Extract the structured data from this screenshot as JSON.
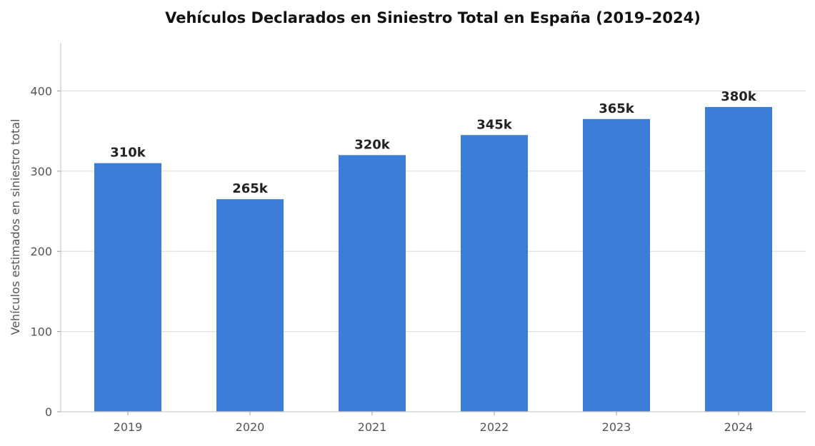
{
  "chart_data": {
    "type": "bar",
    "title": "Vehículos Declarados en Siniestro Total en España (2019–2024)",
    "xlabel": "",
    "ylabel": "Vehículos estimados en siniestro total",
    "categories": [
      "2019",
      "2020",
      "2021",
      "2022",
      "2023",
      "2024"
    ],
    "values": [
      310,
      265,
      320,
      345,
      365,
      380
    ],
    "data_labels": [
      "310k",
      "265k",
      "320k",
      "345k",
      "365k",
      "380k"
    ],
    "ylim": [
      0,
      460
    ],
    "yticks": [
      0,
      100,
      200,
      300,
      400
    ],
    "grid": "horizontal",
    "bar_color": "#3b7dd8"
  }
}
